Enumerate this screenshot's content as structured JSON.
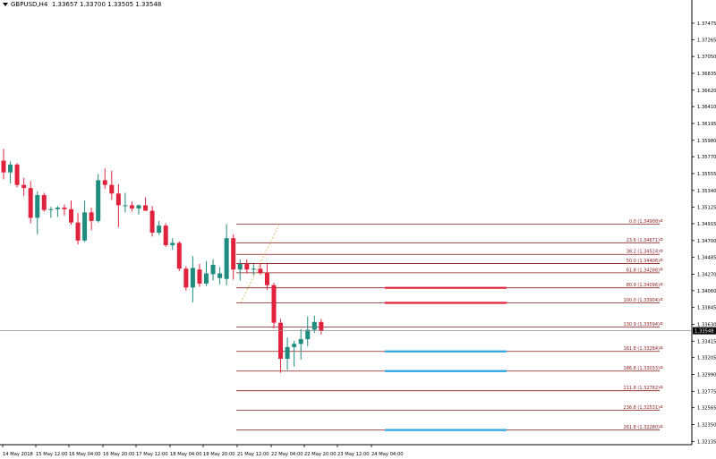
{
  "header": {
    "symbol": "GBPUSD,H4",
    "ohlc": "1.33657 1.33700 1.33505 1.33548"
  },
  "colors": {
    "bull": "#1e8c7e",
    "bear": "#e0223d",
    "fib": "#8b1a1a",
    "axis": "#000000",
    "price_line": "#8c8c8c",
    "blue_level": "#2aa6e0",
    "red_level": "#e0223d"
  },
  "chart_data": {
    "type": "candlestick",
    "y_ticks": [
      "1.37475",
      "1.37265",
      "1.37050",
      "1.36835",
      "1.36620",
      "1.36410",
      "1.36195",
      "1.35980",
      "1.35770",
      "1.35555",
      "1.35340",
      "1.35125",
      "1.34915",
      "1.34700",
      "1.34485",
      "1.34270",
      "1.34060",
      "1.33845",
      "1.33630",
      "1.33415",
      "1.33205",
      "1.32990",
      "1.32775",
      "1.32565",
      "1.32350",
      "1.32135"
    ],
    "ylim": [
      1.3207,
      1.3768
    ],
    "x_ticks": [
      "14 May 2018",
      "15 May 12:00",
      "16 May 04:00",
      "16 May 20:00",
      "17 May 12:00",
      "18 May 04:00",
      "18 May 20:00",
      "21 May 12:00",
      "22 May 04:00",
      "22 May 20:00",
      "23 May 12:00",
      "24 May 04:00"
    ],
    "current_price": "1.33548",
    "fibonacci": [
      {
        "label": "0.0 (1.34908)",
        "price": 1.34908
      },
      {
        "label": "23.6 (1.34671)",
        "price": 1.34671
      },
      {
        "label": "38.2 (1.34524)",
        "price": 1.34524
      },
      {
        "label": "50.0 (1.34406)",
        "price": 1.34406
      },
      {
        "label": "61.8 (1.34288)",
        "price": 1.34288
      },
      {
        "label": "80.9 (1.34096)",
        "price": 1.34096
      },
      {
        "label": "100.0 (1.33904)",
        "price": 1.33904
      },
      {
        "label": "130.9 (1.33594)",
        "price": 1.33594
      },
      {
        "label": "161.8 (1.33284)",
        "price": 1.33284
      },
      {
        "label": "186.8 (1.33033)",
        "price": 1.33033
      },
      {
        "label": "211.8 (1.32782)",
        "price": 1.32782
      },
      {
        "label": "236.8 (1.32531)",
        "price": 1.32531
      },
      {
        "label": "261.8 (1.32280)",
        "price": 1.3228
      }
    ],
    "horizontal_levels": [
      {
        "price": 1.34096,
        "color": "red"
      },
      {
        "price": 1.33904,
        "color": "red"
      },
      {
        "price": 1.33284,
        "color": "blue"
      },
      {
        "price": 1.33033,
        "color": "blue"
      },
      {
        "price": 1.3228,
        "color": "blue"
      }
    ],
    "candles": [
      {
        "o": 1.3572,
        "h": 1.3587,
        "l": 1.3548,
        "c": 1.3557
      },
      {
        "o": 1.3557,
        "h": 1.3571,
        "l": 1.3543,
        "c": 1.3567
      },
      {
        "o": 1.3567,
        "h": 1.3569,
        "l": 1.3538,
        "c": 1.3541
      },
      {
        "o": 1.3541,
        "h": 1.355,
        "l": 1.3527,
        "c": 1.3537
      },
      {
        "o": 1.3537,
        "h": 1.3546,
        "l": 1.3492,
        "c": 1.3499
      },
      {
        "o": 1.3499,
        "h": 1.3533,
        "l": 1.3478,
        "c": 1.3528
      },
      {
        "o": 1.3528,
        "h": 1.3531,
        "l": 1.3507,
        "c": 1.3509
      },
      {
        "o": 1.3509,
        "h": 1.3513,
        "l": 1.3499,
        "c": 1.351
      },
      {
        "o": 1.351,
        "h": 1.3514,
        "l": 1.35,
        "c": 1.3512
      },
      {
        "o": 1.3512,
        "h": 1.3516,
        "l": 1.3502,
        "c": 1.351
      },
      {
        "o": 1.351,
        "h": 1.3521,
        "l": 1.349,
        "c": 1.3493
      },
      {
        "o": 1.3493,
        "h": 1.3505,
        "l": 1.3465,
        "c": 1.347
      },
      {
        "o": 1.347,
        "h": 1.3521,
        "l": 1.3468,
        "c": 1.3506
      },
      {
        "o": 1.3506,
        "h": 1.3512,
        "l": 1.3483,
        "c": 1.3495
      },
      {
        "o": 1.3495,
        "h": 1.3555,
        "l": 1.3493,
        "c": 1.3547
      },
      {
        "o": 1.3547,
        "h": 1.3562,
        "l": 1.3536,
        "c": 1.3541
      },
      {
        "o": 1.3541,
        "h": 1.3559,
        "l": 1.3522,
        "c": 1.353
      },
      {
        "o": 1.353,
        "h": 1.3542,
        "l": 1.3487,
        "c": 1.3515
      },
      {
        "o": 1.3515,
        "h": 1.3531,
        "l": 1.3506,
        "c": 1.3515
      },
      {
        "o": 1.3515,
        "h": 1.352,
        "l": 1.3507,
        "c": 1.3511
      },
      {
        "o": 1.3511,
        "h": 1.3516,
        "l": 1.3503,
        "c": 1.3515
      },
      {
        "o": 1.3515,
        "h": 1.3525,
        "l": 1.3508,
        "c": 1.3508
      },
      {
        "o": 1.3508,
        "h": 1.3514,
        "l": 1.3475,
        "c": 1.348
      },
      {
        "o": 1.348,
        "h": 1.3495,
        "l": 1.3477,
        "c": 1.3489
      },
      {
        "o": 1.3489,
        "h": 1.3492,
        "l": 1.3462,
        "c": 1.3464
      },
      {
        "o": 1.3464,
        "h": 1.3473,
        "l": 1.3458,
        "c": 1.3467
      },
      {
        "o": 1.3467,
        "h": 1.3469,
        "l": 1.3431,
        "c": 1.3434
      },
      {
        "o": 1.3434,
        "h": 1.3437,
        "l": 1.3406,
        "c": 1.341
      },
      {
        "o": 1.341,
        "h": 1.345,
        "l": 1.3391,
        "c": 1.3435
      },
      {
        "o": 1.3433,
        "h": 1.344,
        "l": 1.3411,
        "c": 1.3415
      },
      {
        "o": 1.3415,
        "h": 1.3444,
        "l": 1.3412,
        "c": 1.3428
      },
      {
        "o": 1.3427,
        "h": 1.3446,
        "l": 1.3419,
        "c": 1.3439
      },
      {
        "o": 1.3422,
        "h": 1.3436,
        "l": 1.3414,
        "c": 1.3428
      },
      {
        "o": 1.3421,
        "h": 1.3491,
        "l": 1.3413,
        "c": 1.3473
      },
      {
        "o": 1.3473,
        "h": 1.3478,
        "l": 1.342,
        "c": 1.3433
      },
      {
        "o": 1.3433,
        "h": 1.3446,
        "l": 1.3419,
        "c": 1.344
      },
      {
        "o": 1.344,
        "h": 1.3446,
        "l": 1.3428,
        "c": 1.3433
      },
      {
        "o": 1.3433,
        "h": 1.344,
        "l": 1.3426,
        "c": 1.3434
      },
      {
        "o": 1.3434,
        "h": 1.3441,
        "l": 1.3426,
        "c": 1.3429
      },
      {
        "o": 1.3429,
        "h": 1.3441,
        "l": 1.3407,
        "c": 1.3413
      },
      {
        "o": 1.3413,
        "h": 1.3416,
        "l": 1.3358,
        "c": 1.3365
      },
      {
        "o": 1.3365,
        "h": 1.337,
        "l": 1.3301,
        "c": 1.3319
      },
      {
        "o": 1.3319,
        "h": 1.3346,
        "l": 1.3305,
        "c": 1.3334
      },
      {
        "o": 1.3334,
        "h": 1.3342,
        "l": 1.3309,
        "c": 1.3338
      },
      {
        "o": 1.3338,
        "h": 1.3357,
        "l": 1.3318,
        "c": 1.3344
      },
      {
        "o": 1.3344,
        "h": 1.3373,
        "l": 1.3335,
        "c": 1.3356
      },
      {
        "o": 1.3356,
        "h": 1.3374,
        "l": 1.3352,
        "c": 1.3366
      },
      {
        "o": 1.3366,
        "h": 1.337,
        "l": 1.335,
        "c": 1.3355
      }
    ]
  }
}
